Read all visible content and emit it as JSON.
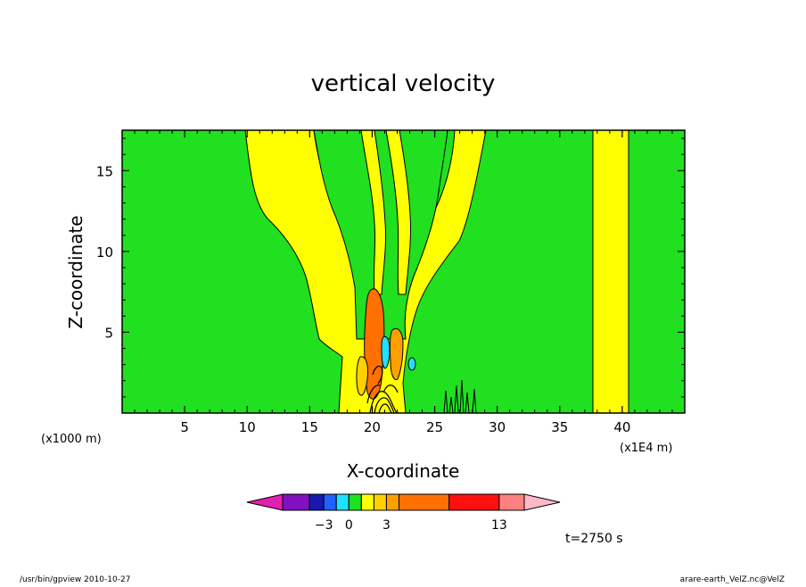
{
  "chart_data": {
    "type": "heatmap",
    "title": "vertical velocity",
    "xlabel": "X-coordinate",
    "ylabel": "Z-coordinate",
    "x_unit_left": "(x1000 m)",
    "x_unit_right": "(x1E4 m)",
    "xlim": [
      0,
      45
    ],
    "ylim": [
      0,
      17.5
    ],
    "xticks": [
      5,
      10,
      15,
      20,
      25,
      30,
      35,
      40
    ],
    "yticks": [
      5,
      10,
      15
    ],
    "time_label": "t=2750 s",
    "colorbar": {
      "colors": [
        "#e020b0",
        "#8010c0",
        "#1818b0",
        "#2060ff",
        "#20e0ff",
        "#20e020",
        "#ffff00",
        "#ffd000",
        "#ffa000",
        "#ff7000",
        "#ff1010",
        "#ff8080",
        "#ffb8c8"
      ],
      "labels": [
        {
          "value": -3,
          "text": "−3"
        },
        {
          "value": 0,
          "text": "0"
        },
        {
          "value": 3,
          "text": "3"
        },
        {
          "value": 13,
          "text": "13"
        }
      ]
    },
    "fill_colors": {
      "background": "#20e020",
      "positive_weak": "#ffff00",
      "positive_mid": "#ffa000",
      "positive_strong": "#ff7000",
      "negative": "#20e0ff",
      "contour": "#000000"
    }
  },
  "footer": {
    "left": "/usr/bin/gpview   2010-10-27",
    "right": "arare-earth_VelZ.nc@VelZ"
  }
}
